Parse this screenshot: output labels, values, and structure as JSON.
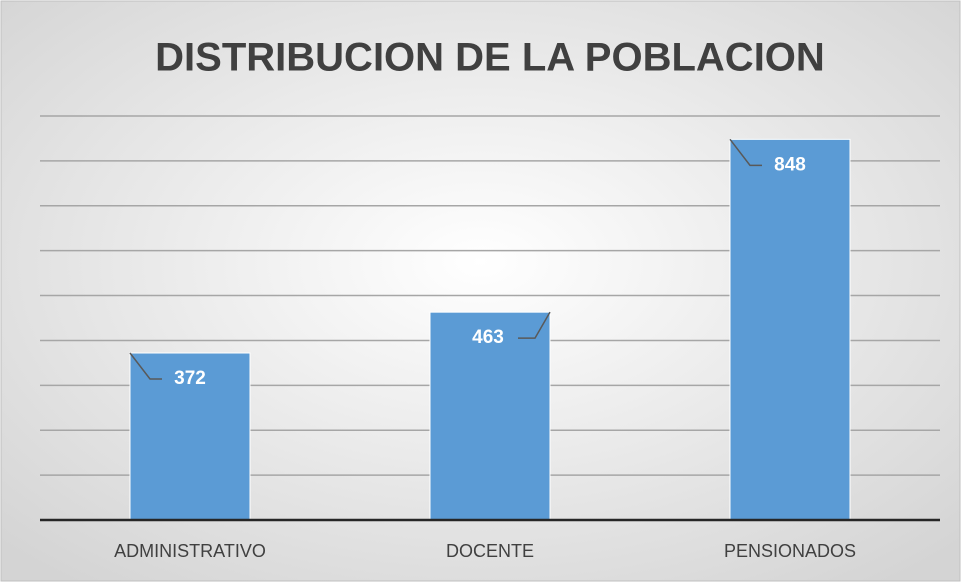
{
  "chart_data": {
    "type": "bar",
    "title": "DISTRIBUCION DE LA POBLACION",
    "categories": [
      "ADMINISTRATIVO",
      "DOCENTE",
      "PENSIONADOS"
    ],
    "values": [
      372,
      463,
      848
    ],
    "color": "#5b9bd5",
    "ylim": [
      0,
      900
    ],
    "yticks": [
      0,
      100,
      200,
      300,
      400,
      500,
      600,
      700,
      800,
      900
    ],
    "grid": true
  }
}
